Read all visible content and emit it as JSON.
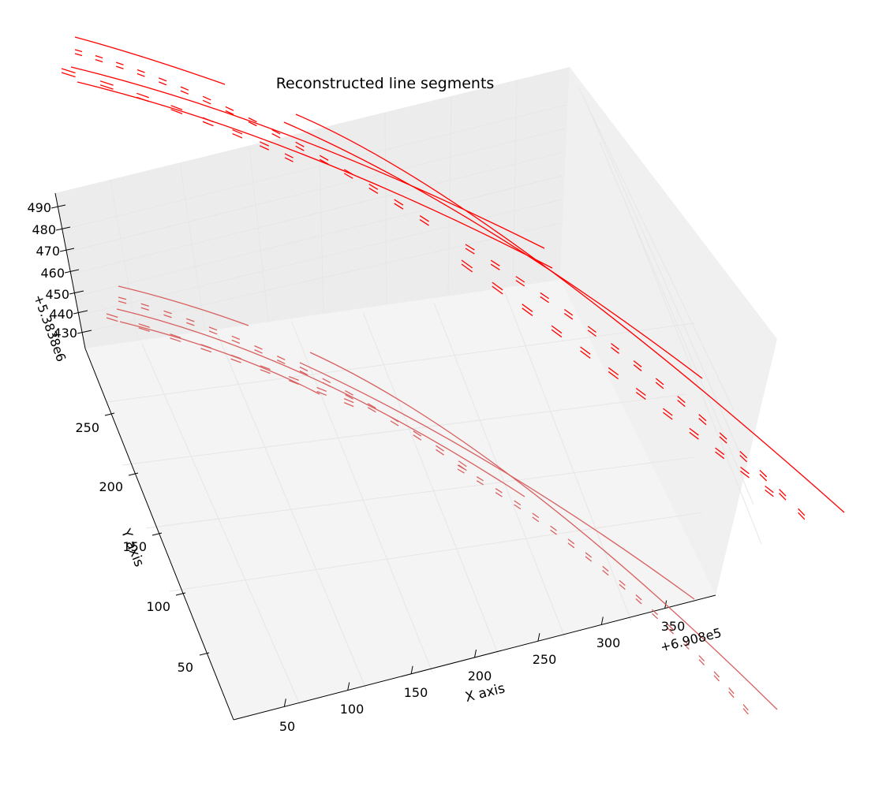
{
  "chart_data": {
    "type": "line3d",
    "title": "Reconstructed line segments",
    "xlabel": "X axis",
    "ylabel": "Y axis",
    "zlabel": "",
    "x_offset_label": "+6.908e5",
    "z_offset_label": "+5.3838e6",
    "x_ticks": [
      "50",
      "100",
      "150",
      "200",
      "250",
      "300",
      "350"
    ],
    "y_ticks": [
      "50",
      "100",
      "150",
      "200",
      "250"
    ],
    "z_ticks": [
      "430",
      "440",
      "450",
      "460",
      "470",
      "480",
      "490"
    ],
    "grid": true,
    "colors": {
      "upper": "#ff0000",
      "lower": "#d95f5f",
      "pane": "#f2f2f2",
      "grid": "#e6e6e6"
    },
    "series": [
      {
        "group": "upper",
        "style": "solid"
      },
      {
        "group": "upper",
        "style": "dashed"
      },
      {
        "group": "lower",
        "style": "solid"
      },
      {
        "group": "lower",
        "style": "dashed"
      }
    ]
  }
}
